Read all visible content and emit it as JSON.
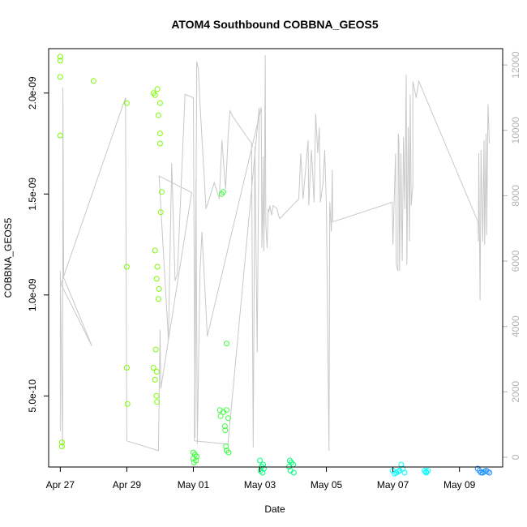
{
  "chart_data": {
    "type": "scatter",
    "title": "ATOM4 Southbound COBBNA_GEOS5",
    "xlabel": "Date",
    "ylabel": "COBBNA_GEOS5",
    "x_unit": "days",
    "x_ticks": [
      {
        "label": "Apr 27",
        "value": 0
      },
      {
        "label": "Apr 29",
        "value": 2
      },
      {
        "label": "May 01",
        "value": 4
      },
      {
        "label": "May 03",
        "value": 6
      },
      {
        "label": "May 05",
        "value": 8
      },
      {
        "label": "May 07",
        "value": 10
      },
      {
        "label": "May 09",
        "value": 12
      }
    ],
    "xlim": [
      -0.35,
      13.3
    ],
    "y_left": {
      "ylim": [
        1.48e-10,
        2.22e-09
      ],
      "ticks": [
        {
          "label": "5.0e-10",
          "value": 5e-10
        },
        {
          "label": "1.0e-09",
          "value": 1e-09
        },
        {
          "label": "1.5e-09",
          "value": 1.5e-09
        },
        {
          "label": "2.0e-09",
          "value": 2e-09
        }
      ]
    },
    "y_right": {
      "ylim": [
        -300,
        12500
      ],
      "ticks": [
        {
          "label": "0",
          "value": 0
        },
        {
          "label": "2000",
          "value": 2000
        },
        {
          "label": "4000",
          "value": 4000
        },
        {
          "label": "6000",
          "value": 6000
        },
        {
          "label": "8000",
          "value": 8000
        },
        {
          "label": "10000",
          "value": 10000
        },
        {
          "label": "12000",
          "value": 12000
        }
      ]
    },
    "altitude_line": {
      "color": "#c8c8c8",
      "points": [
        [
          0,
          800
        ],
        [
          0,
          5700
        ],
        [
          0.07,
          300
        ],
        [
          0.08,
          11300
        ],
        [
          0.1,
          5500
        ],
        [
          0.95,
          3400
        ],
        [
          0.02,
          5300
        ],
        [
          1.96,
          11000
        ],
        [
          2.0,
          500
        ],
        [
          2.95,
          200
        ],
        [
          3.0,
          3900
        ],
        [
          3.02,
          2100
        ],
        [
          3.95,
          8100
        ],
        [
          2.97,
          8600
        ],
        [
          3.25,
          3600
        ],
        [
          3.35,
          9000
        ],
        [
          3.45,
          5400
        ],
        [
          3.52,
          5600
        ],
        [
          3.75,
          11100
        ],
        [
          4.0,
          11000
        ],
        [
          4.05,
          600
        ],
        [
          4.1,
          12100
        ],
        [
          4.15,
          11900
        ],
        [
          4.2,
          10800
        ],
        [
          4.38,
          7600
        ],
        [
          4.63,
          8400
        ],
        [
          4.78,
          7900
        ],
        [
          4.86,
          9700
        ],
        [
          4.97,
          8200
        ],
        [
          5.05,
          9900
        ],
        [
          5.1,
          10600
        ],
        [
          5.2,
          10400
        ],
        [
          5.75,
          9600
        ],
        [
          5.78,
          3800
        ],
        [
          5.8,
          300
        ],
        [
          5.85,
          9500
        ],
        [
          5.92,
          3200
        ],
        [
          5.98,
          10700
        ],
        [
          5.04,
          400
        ],
        [
          4.03,
          500
        ],
        [
          4.08,
          8500
        ],
        [
          4.12,
          400
        ],
        [
          4.2,
          5700
        ],
        [
          4.26,
          6900
        ],
        [
          4.42,
          3700
        ],
        [
          6.02,
          10600
        ],
        [
          6.04,
          10700
        ],
        [
          6.06,
          6400
        ],
        [
          6.08,
          7300
        ],
        [
          6.1,
          9200
        ],
        [
          6.12,
          6300
        ],
        [
          6.14,
          7900
        ],
        [
          6.16,
          12300
        ],
        [
          6.18,
          7100
        ],
        [
          6.22,
          6400
        ],
        [
          6.25,
          7600
        ],
        [
          6.27,
          7500
        ],
        [
          6.3,
          7700
        ],
        [
          6.35,
          7400
        ],
        [
          6.4,
          7700
        ],
        [
          6.52,
          7600
        ],
        [
          6.56,
          7400
        ],
        [
          6.6,
          7300
        ],
        [
          7.17,
          7900
        ],
        [
          7.23,
          9300
        ],
        [
          7.3,
          7900
        ],
        [
          7.45,
          9700
        ],
        [
          7.47,
          7700
        ],
        [
          7.55,
          9400
        ],
        [
          7.63,
          7800
        ],
        [
          7.68,
          10500
        ],
        [
          7.74,
          9300
        ],
        [
          7.79,
          10100
        ],
        [
          7.82,
          7800
        ],
        [
          7.9,
          8400
        ],
        [
          7.95,
          9400
        ],
        [
          8.0,
          7600
        ],
        [
          8.08,
          200
        ],
        [
          8.1,
          7800
        ],
        [
          8.15,
          6900
        ],
        [
          8.18,
          8800
        ],
        [
          8.19,
          7200
        ],
        [
          9.98,
          7800
        ],
        [
          10.0,
          6500
        ],
        [
          10.08,
          9300
        ],
        [
          10.1,
          5900
        ],
        [
          10.15,
          5700
        ],
        [
          10.16,
          9900
        ],
        [
          10.18,
          9700
        ],
        [
          10.2,
          5700
        ],
        [
          10.24,
          9300
        ],
        [
          10.28,
          6000
        ],
        [
          10.32,
          9800
        ],
        [
          10.36,
          7600
        ],
        [
          10.4,
          11700
        ],
        [
          10.42,
          5900
        ],
        [
          10.46,
          10100
        ],
        [
          10.5,
          6600
        ],
        [
          10.52,
          11100
        ],
        [
          10.55,
          7700
        ],
        [
          10.6,
          8300
        ],
        [
          10.6,
          11500
        ],
        [
          10.7,
          11000
        ],
        [
          10.78,
          11500
        ],
        [
          12.56,
          7200
        ],
        [
          12.57,
          6600
        ],
        [
          12.58,
          9300
        ],
        [
          12.62,
          4800
        ],
        [
          12.65,
          9400
        ],
        [
          12.7,
          6600
        ],
        [
          12.74,
          9700
        ],
        [
          12.76,
          6500
        ],
        [
          12.8,
          9900
        ],
        [
          12.82,
          6800
        ],
        [
          12.86,
          10800
        ],
        [
          12.9,
          9600
        ]
      ]
    },
    "series": [
      {
        "color": "#7cfc00",
        "points": [
          [
            0.0,
            2.18e-09
          ],
          [
            0.0,
            2.16e-09
          ],
          [
            0.0,
            2.08e-09
          ],
          [
            0.0,
            1.79e-09
          ],
          [
            0.05,
            2.7e-10
          ],
          [
            0.05,
            2.5e-10
          ],
          [
            1.0,
            2.06e-09
          ],
          [
            2.0,
            1.95e-09
          ],
          [
            2.0,
            1.14e-09
          ],
          [
            2.0,
            6.4e-10
          ],
          [
            2.02,
            4.6e-10
          ],
          [
            2.8,
            2e-09
          ],
          [
            2.85,
            1.99e-09
          ],
          [
            2.92,
            2.02e-09
          ],
          [
            2.95,
            1.89e-09
          ],
          [
            3.0,
            1.95e-09
          ],
          [
            3.0,
            1.8e-09
          ],
          [
            3.0,
            1.75e-09
          ],
          [
            3.05,
            1.51e-09
          ],
          [
            3.02,
            1.41e-09
          ],
          [
            2.85,
            1.22e-09
          ],
          [
            2.92,
            1.14e-09
          ],
          [
            2.97,
            1.03e-09
          ],
          [
            2.9,
            1.08e-09
          ],
          [
            2.95,
            9.8e-10
          ],
          [
            2.8,
            6.4e-10
          ],
          [
            2.85,
            5.8e-10
          ],
          [
            2.9,
            6.2e-10
          ],
          [
            2.87,
            7.3e-10
          ],
          [
            2.89,
            5e-10
          ],
          [
            2.91,
            4.7e-10
          ]
        ]
      },
      {
        "color": "#3cfc3c",
        "points": [
          [
            4.0,
            2.2e-10
          ],
          [
            4.05,
            2.1e-10
          ],
          [
            4.1,
            2e-10
          ],
          [
            4.0,
            1.9e-10
          ],
          [
            4.08,
            1.8e-10
          ],
          [
            4.02,
            1.7e-10
          ],
          [
            4.85,
            1.5e-09
          ],
          [
            4.9,
            1.51e-09
          ],
          [
            5.0,
            7.6e-10
          ],
          [
            4.8,
            4.3e-10
          ],
          [
            4.9,
            4.2e-10
          ],
          [
            4.82,
            4e-10
          ],
          [
            4.95,
            3.5e-10
          ],
          [
            5.0,
            4.3e-10
          ],
          [
            4.96,
            3.3e-10
          ],
          [
            5.05,
            3.9e-10
          ],
          [
            5.0,
            2.3e-10
          ],
          [
            5.06,
            2.2e-10
          ],
          [
            4.98,
            2.5e-10
          ]
        ]
      },
      {
        "color": "#00fc7c",
        "points": [
          [
            6.0,
            1.8e-10
          ],
          [
            6.1,
            1.6e-10
          ],
          [
            6.05,
            1.5e-10
          ],
          [
            6.12,
            1.4e-10
          ],
          [
            6.02,
            1.3e-10
          ],
          [
            6.08,
            1.2e-10
          ],
          [
            6.9,
            1.8e-10
          ],
          [
            6.95,
            1.7e-10
          ],
          [
            7.0,
            1.6e-10
          ],
          [
            6.88,
            1.5e-10
          ],
          [
            6.92,
            1.3e-10
          ],
          [
            7.02,
            1.2e-10
          ]
        ]
      },
      {
        "color": "#00fcfc",
        "points": [
          [
            10.0,
            1.3e-10
          ],
          [
            10.1,
            1.2e-10
          ],
          [
            10.05,
            1.15e-10
          ],
          [
            10.15,
            1.25e-10
          ],
          [
            10.2,
            1.3e-10
          ],
          [
            10.25,
            1.6e-10
          ],
          [
            10.3,
            1.4e-10
          ],
          [
            10.35,
            1.2e-10
          ],
          [
            10.95,
            1.3e-10
          ],
          [
            11.0,
            1.25e-10
          ],
          [
            11.05,
            1.3e-10
          ],
          [
            11.0,
            1.2e-10
          ]
        ]
      },
      {
        "color": "#1e90ff",
        "points": [
          [
            12.55,
            1.4e-10
          ],
          [
            12.6,
            1.3e-10
          ],
          [
            12.65,
            1.2e-10
          ],
          [
            12.7,
            1.2e-10
          ],
          [
            12.75,
            1.25e-10
          ],
          [
            12.8,
            1.3e-10
          ],
          [
            12.85,
            1.25e-10
          ],
          [
            12.9,
            1.2e-10
          ]
        ]
      }
    ]
  }
}
